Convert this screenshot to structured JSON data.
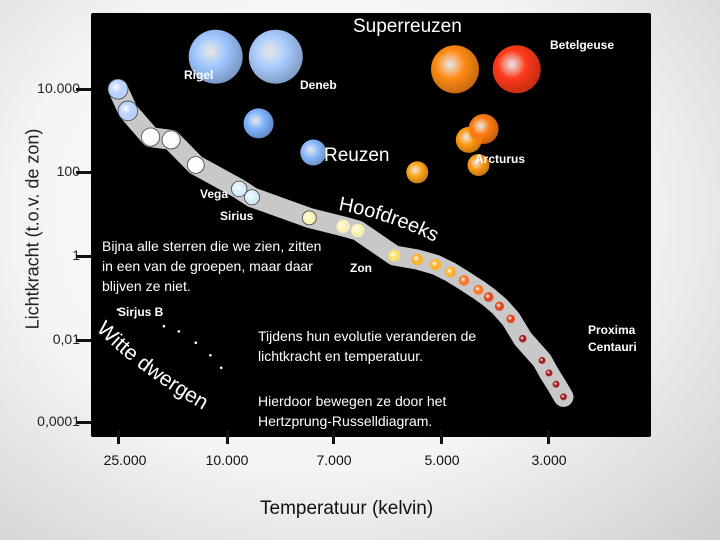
{
  "axes": {
    "xlabel": "Temperatuur (kelvin)",
    "ylabel": "Lichtkracht (t.o.v. de zon)",
    "x_ticks": [
      "25.000",
      "10.000",
      "7.000",
      "5.000",
      "3.000"
    ],
    "y_ticks": [
      "10.000",
      "100",
      "1",
      "0,01",
      "0,0001"
    ]
  },
  "labels": {
    "superreuzen": "Superreuzen",
    "reuzen": "Reuzen",
    "hoofdreeks": "Hoofdreeks",
    "witte_dwergen": "Witte dwergen"
  },
  "stars": {
    "betelgeuse": "Betelgeuse",
    "rigel": "Rigel",
    "deneb": "Deneb",
    "arcturus": "Arcturus",
    "vega": "Vega",
    "sirius": "Sirius",
    "zon": "Zon",
    "sirius_b": "Sirjus B",
    "proxima": "Proxima Centauri"
  },
  "notes": {
    "note1": "Bijna alle sterren die we zien, zitten in een van de groepen, maar daar blijven ze niet.",
    "note2": "Tijdens hun evolutie veranderen de lichtkracht en temperatuur.",
    "note3": "Hierdoor bewegen ze door het Hertzprung-Russelldiagram."
  },
  "colors": {
    "background": "#000000",
    "main_sequence_band": "#c8c8c8",
    "text": "#ffffff",
    "axis": "#111111"
  },
  "chart_data": {
    "type": "scatter",
    "title": "",
    "xlabel": "Temperatuur (kelvin)",
    "ylabel": "Lichtkracht (t.o.v. de zon)",
    "x_scale": "reversed-log",
    "y_scale": "log",
    "x_ticks": [
      25000,
      10000,
      7000,
      5000,
      3000
    ],
    "y_ticks": [
      10000,
      100,
      1,
      0.01,
      0.0001
    ],
    "grid": false,
    "groups": [
      {
        "name": "Superreuzen",
        "points": [
          {
            "label": "Rigel",
            "temperature": 11000,
            "luminosity": 60000,
            "color": "#9ec6ff"
          },
          {
            "label": "Deneb",
            "temperature": 8500,
            "luminosity": 60000,
            "color": "#a8ccff"
          },
          {
            "label": "Betelgeuse",
            "temperature": 3500,
            "luminosity": 30000,
            "color": "#ff3a1a"
          },
          {
            "temperature": 4700,
            "luminosity": 30000,
            "color": "#ff8a14"
          }
        ]
      },
      {
        "name": "Reuzen",
        "points": [
          {
            "label": "Arcturus",
            "temperature": 4200,
            "luminosity": 150,
            "color": "#ff9a1a"
          },
          {
            "temperature": 9000,
            "luminosity": 1500,
            "color": "#7fb4ff"
          },
          {
            "temperature": 7500,
            "luminosity": 300,
            "color": "#8cbcff"
          },
          {
            "temperature": 5400,
            "luminosity": 100,
            "color": "#ffa61a"
          },
          {
            "temperature": 4400,
            "luminosity": 600,
            "color": "#ff9a10"
          },
          {
            "temperature": 4100,
            "luminosity": 1100,
            "color": "#ff7a10"
          }
        ]
      },
      {
        "name": "Hoofdreeks",
        "points": [
          {
            "temperature": 25000,
            "luminosity": 10000
          },
          {
            "temperature": 23000,
            "luminosity": 3000
          },
          {
            "temperature": 19000,
            "luminosity": 700
          },
          {
            "temperature": 16000,
            "luminosity": 600
          },
          {
            "temperature": 13000,
            "luminosity": 150
          },
          {
            "label": "Vega",
            "temperature": 9600,
            "luminosity": 40
          },
          {
            "label": "Sirius",
            "temperature": 9200,
            "luminosity": 25
          },
          {
            "temperature": 7600,
            "luminosity": 8
          },
          {
            "temperature": 6800,
            "luminosity": 5
          },
          {
            "temperature": 6500,
            "luminosity": 4
          },
          {
            "label": "Zon",
            "temperature": 5800,
            "luminosity": 1
          },
          {
            "temperature": 5400,
            "luminosity": 0.8
          },
          {
            "temperature": 5100,
            "luminosity": 0.6
          },
          {
            "temperature": 4800,
            "luminosity": 0.4
          },
          {
            "temperature": 4500,
            "luminosity": 0.25
          },
          {
            "temperature": 4200,
            "luminosity": 0.15
          },
          {
            "temperature": 4000,
            "luminosity": 0.1
          },
          {
            "temperature": 3800,
            "luminosity": 0.06
          },
          {
            "temperature": 3600,
            "luminosity": 0.03
          },
          {
            "temperature": 3400,
            "luminosity": 0.01
          },
          {
            "label": "Proxima Centauri",
            "temperature": 3100,
            "luminosity": 0.003
          },
          {
            "temperature": 3000,
            "luminosity": 0.0015
          },
          {
            "temperature": 2900,
            "luminosity": 0.0008
          },
          {
            "temperature": 2800,
            "luminosity": 0.0004
          }
        ]
      },
      {
        "name": "Witte dwergen",
        "points": [
          {
            "label": "Sirjus B",
            "temperature": 25000,
            "luminosity": 0.05
          },
          {
            "temperature": 17000,
            "luminosity": 0.02
          },
          {
            "temperature": 15000,
            "luminosity": 0.015
          },
          {
            "temperature": 13000,
            "luminosity": 0.008
          },
          {
            "temperature": 11500,
            "luminosity": 0.004
          },
          {
            "temperature": 10500,
            "luminosity": 0.002
          }
        ]
      }
    ]
  }
}
